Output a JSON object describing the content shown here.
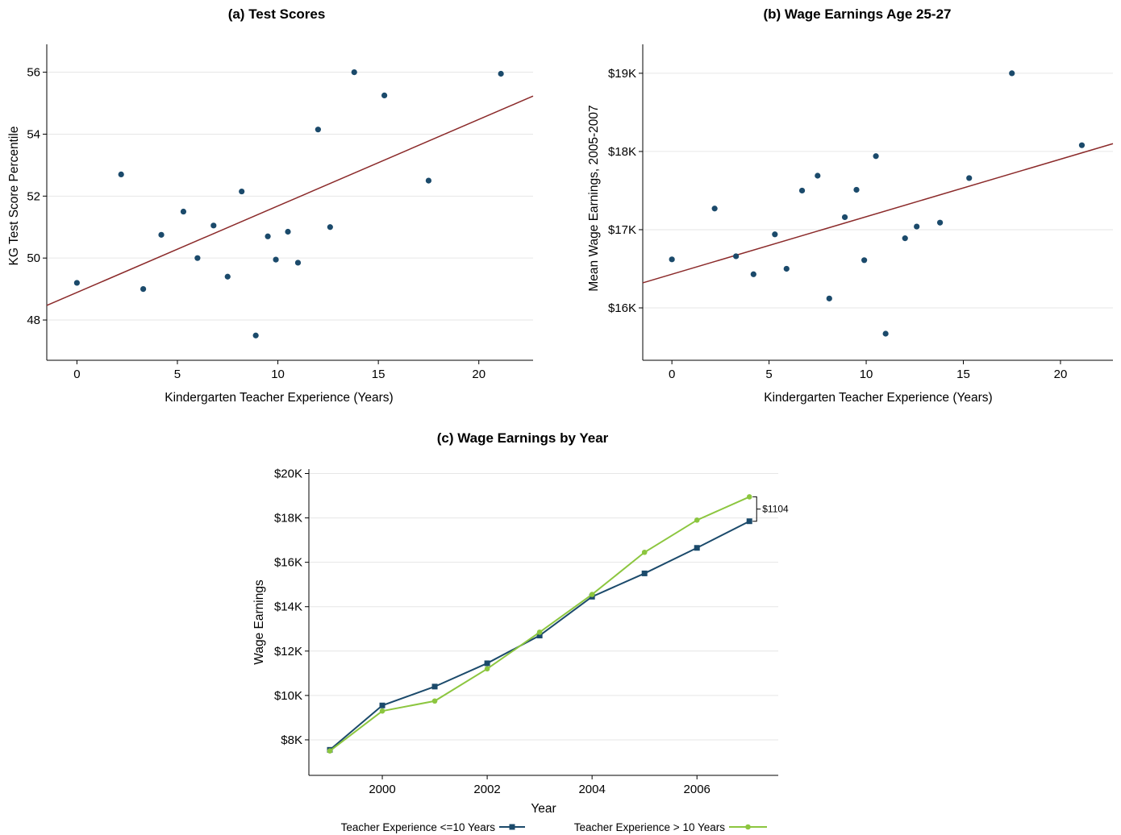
{
  "chart_data": [
    {
      "type": "scatter",
      "title": "(a) Test Scores",
      "xlabel": "Kindergarten Teacher Experience (Years)",
      "ylabel": "KG Test Score Percentile",
      "xlim": [
        -1.5,
        22.7
      ],
      "ylim": [
        46.7,
        56.9
      ],
      "xticks": [
        0,
        5,
        10,
        15,
        20
      ],
      "yticks": [
        48,
        50,
        52,
        54,
        56
      ],
      "yticklabels": [
        "48",
        "50",
        "52",
        "54",
        "56"
      ],
      "grid": true,
      "points": [
        {
          "x": 0.0,
          "y": 49.2
        },
        {
          "x": 2.2,
          "y": 52.7
        },
        {
          "x": 3.3,
          "y": 49.0
        },
        {
          "x": 4.2,
          "y": 50.75
        },
        {
          "x": 5.3,
          "y": 51.5
        },
        {
          "x": 6.0,
          "y": 50.0
        },
        {
          "x": 6.8,
          "y": 51.05
        },
        {
          "x": 7.5,
          "y": 49.4
        },
        {
          "x": 8.2,
          "y": 52.15
        },
        {
          "x": 8.9,
          "y": 47.5
        },
        {
          "x": 9.5,
          "y": 50.7
        },
        {
          "x": 9.9,
          "y": 49.95
        },
        {
          "x": 10.5,
          "y": 50.85
        },
        {
          "x": 11.0,
          "y": 49.85
        },
        {
          "x": 12.0,
          "y": 54.15
        },
        {
          "x": 12.6,
          "y": 51.0
        },
        {
          "x": 13.8,
          "y": 56.0
        },
        {
          "x": 15.3,
          "y": 55.25
        },
        {
          "x": 17.5,
          "y": 52.5
        },
        {
          "x": 21.1,
          "y": 55.95
        }
      ],
      "fit_line": {
        "x": [
          -1.5,
          22.7
        ],
        "y": [
          48.47,
          55.23
        ]
      },
      "point_color": "#1b4a6b",
      "line_color": "#8b2a2a"
    },
    {
      "type": "scatter",
      "title": "(b) Wage Earnings Age 25-27",
      "xlabel": "Kindergarten Teacher Experience (Years)",
      "ylabel": "Mean Wage Earnings, 2005-2007",
      "xlim": [
        -1.5,
        22.7
      ],
      "ylim": [
        15.33,
        19.37
      ],
      "xticks": [
        0,
        5,
        10,
        15,
        20
      ],
      "yticks": [
        16,
        17,
        18,
        19
      ],
      "yticklabels": [
        "$16K",
        "$17K",
        "$18K",
        "$19K"
      ],
      "grid": true,
      "points": [
        {
          "x": 0.0,
          "y": 16.62
        },
        {
          "x": 2.2,
          "y": 17.27
        },
        {
          "x": 3.3,
          "y": 16.66
        },
        {
          "x": 4.2,
          "y": 16.43
        },
        {
          "x": 5.3,
          "y": 16.94
        },
        {
          "x": 5.9,
          "y": 16.5
        },
        {
          "x": 6.7,
          "y": 17.5
        },
        {
          "x": 7.5,
          "y": 17.69
        },
        {
          "x": 8.1,
          "y": 16.12
        },
        {
          "x": 8.9,
          "y": 17.16
        },
        {
          "x": 9.5,
          "y": 17.51
        },
        {
          "x": 9.9,
          "y": 16.61
        },
        {
          "x": 10.5,
          "y": 17.94
        },
        {
          "x": 11.0,
          "y": 15.67
        },
        {
          "x": 12.0,
          "y": 16.89
        },
        {
          "x": 12.6,
          "y": 17.04
        },
        {
          "x": 13.8,
          "y": 17.09
        },
        {
          "x": 15.3,
          "y": 17.66
        },
        {
          "x": 17.5,
          "y": 19.0
        },
        {
          "x": 21.1,
          "y": 18.08
        }
      ],
      "fit_line": {
        "x": [
          -1.5,
          22.7
        ],
        "y": [
          16.32,
          18.1
        ]
      },
      "point_color": "#1b4a6b",
      "line_color": "#8b2a2a"
    },
    {
      "type": "line",
      "title": "(c) Wage Earnings by Year",
      "xlabel": "Year",
      "ylabel": "Wage Earnings",
      "xlim": [
        1998.6,
        2007.55
      ],
      "ylim": [
        6.4,
        20.2
      ],
      "xticks": [
        2000,
        2002,
        2004,
        2006
      ],
      "yticks": [
        8,
        10,
        12,
        14,
        16,
        18,
        20
      ],
      "yticklabels": [
        "$8K",
        "$10K",
        "$12K",
        "$14K",
        "$16K",
        "$18K",
        "$20K"
      ],
      "grid": true,
      "x": [
        1999,
        2000,
        2001,
        2002,
        2003,
        2004,
        2005,
        2006,
        2007
      ],
      "series": [
        {
          "name": "Teacher Experience <=10 Years",
          "color": "#1b4a6b",
          "marker": "square",
          "values": [
            7.55,
            9.55,
            10.4,
            11.45,
            12.7,
            14.45,
            15.5,
            16.65,
            17.85
          ]
        },
        {
          "name": "Teacher Experience > 10 Years",
          "color": "#8cc63f",
          "marker": "circle",
          "values": [
            7.5,
            9.3,
            9.75,
            11.2,
            12.85,
            14.55,
            16.45,
            17.9,
            18.95
          ]
        }
      ],
      "annotation": {
        "text": "$1104",
        "x": 2007
      },
      "legend_position": "bottom"
    }
  ]
}
